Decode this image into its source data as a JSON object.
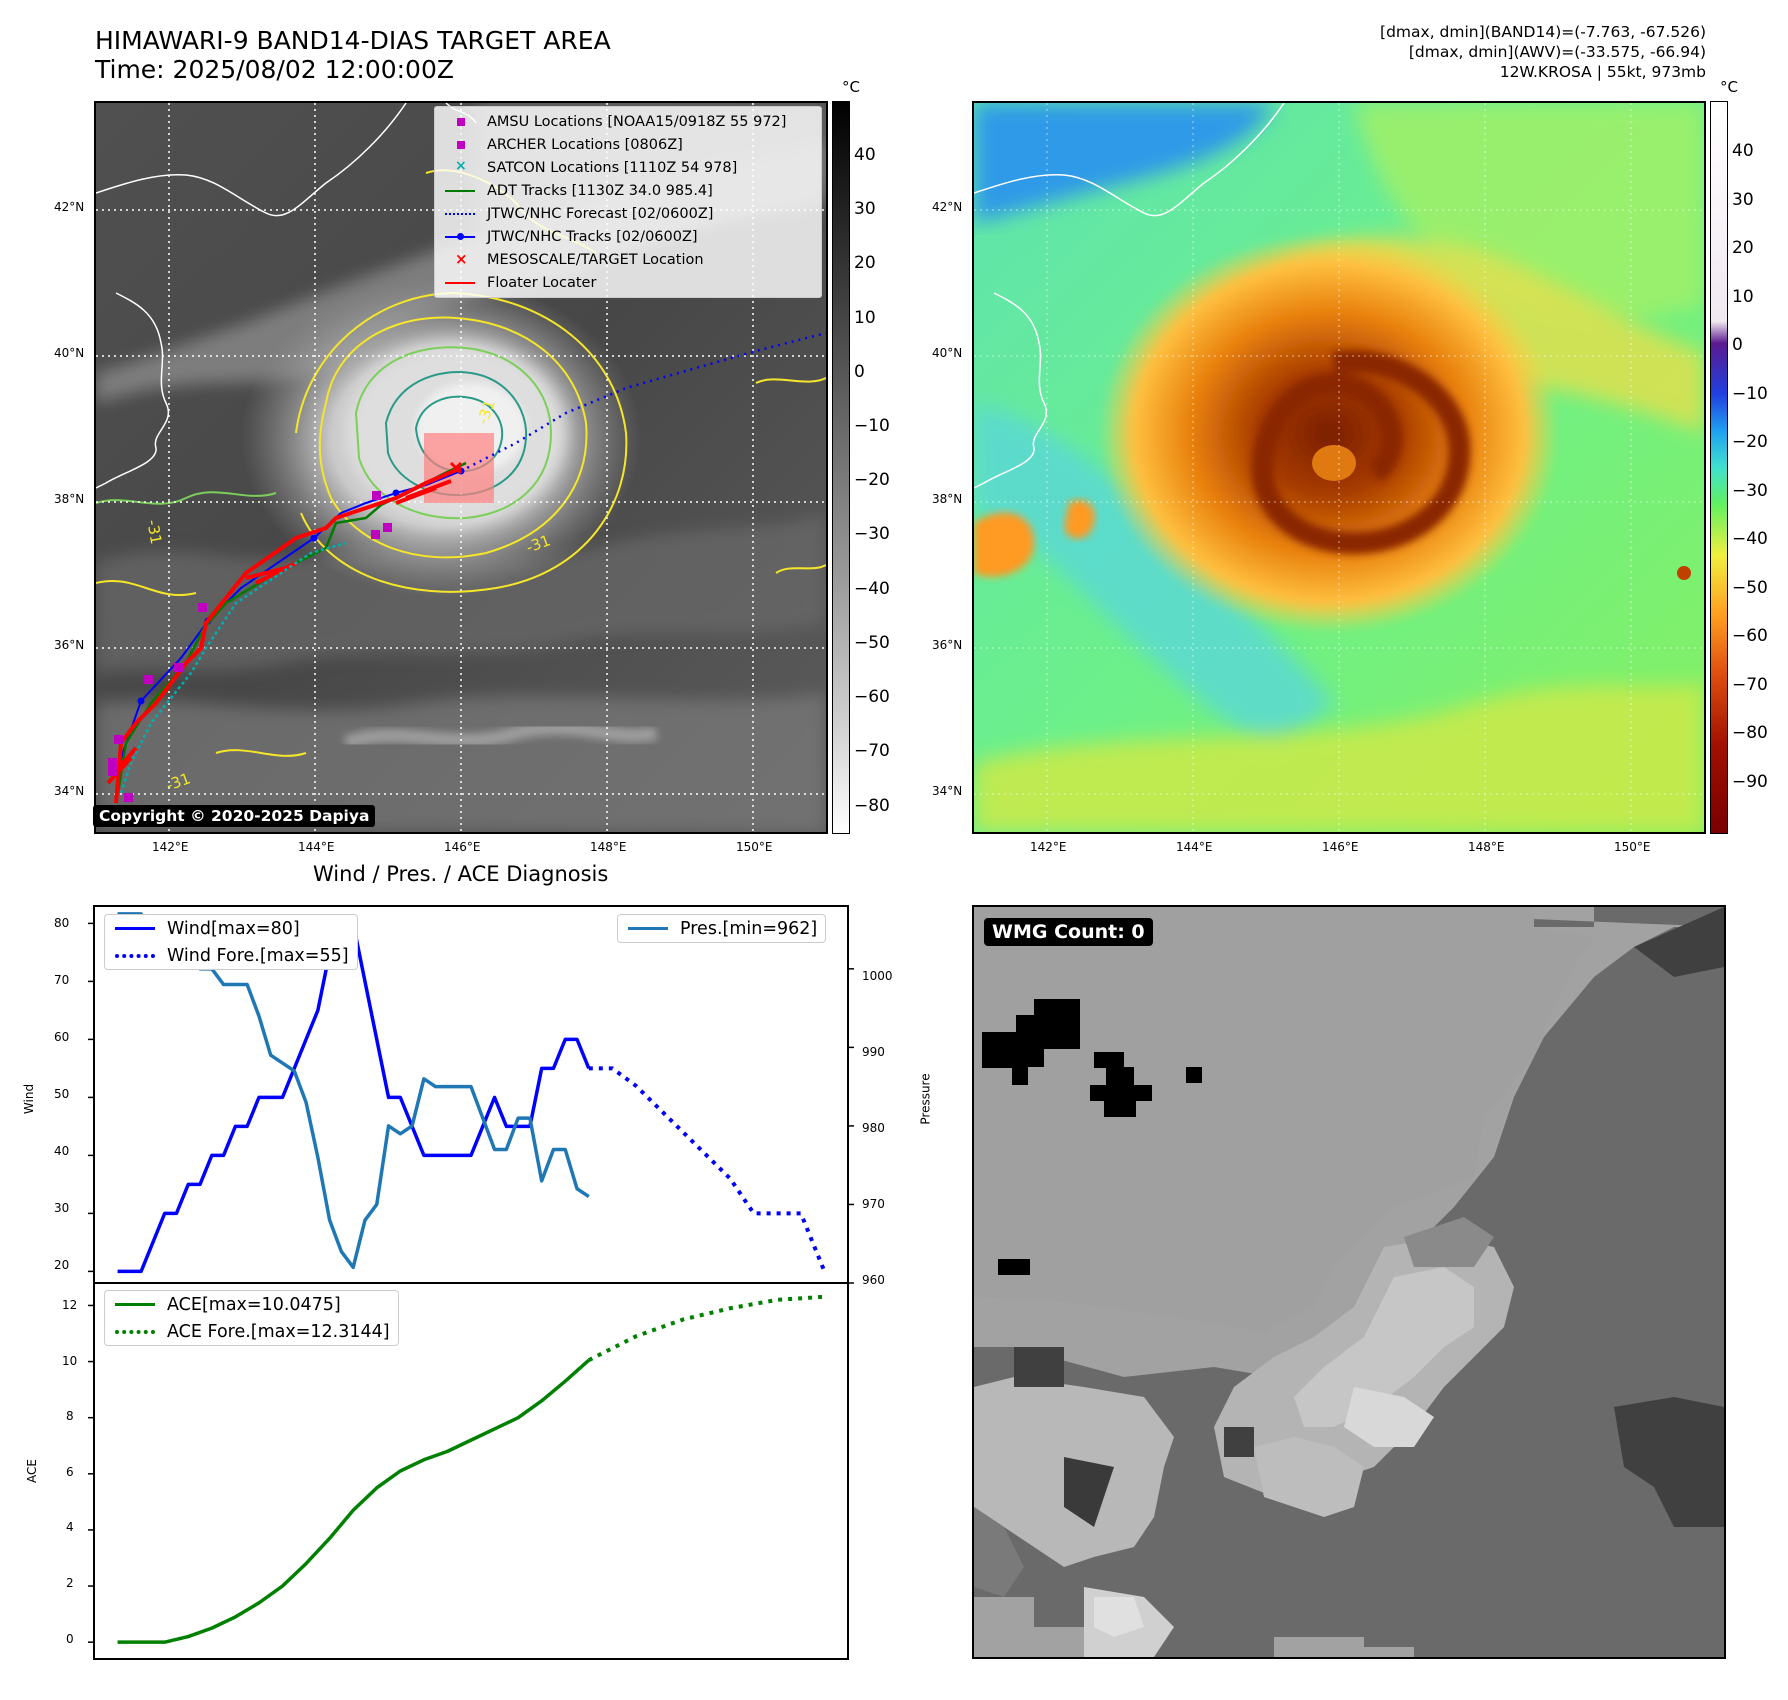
{
  "header": {
    "title_line1": "HIMAWARI-9 BAND14-DIAS TARGET AREA",
    "title_line2": "Time: 2025/08/02 12:00:00Z",
    "info_line1": "[dmax, dmin](BAND14)=(-7.763, -67.526)",
    "info_line2": "[dmax, dmin](AWV)=(-33.575, -66.94)",
    "info_line3": "12W.KROSA | 55kt, 973mb"
  },
  "map_axes": {
    "lat_labels": [
      "42°N",
      "40°N",
      "38°N",
      "36°N",
      "34°N"
    ],
    "lon_labels": [
      "142°E",
      "144°E",
      "146°E",
      "148°E",
      "150°E"
    ]
  },
  "colorbar_gray": {
    "unit": "°C",
    "ticks": [
      "40",
      "30",
      "20",
      "10",
      "0",
      "−10",
      "−20",
      "−30",
      "−40",
      "−50",
      "−60",
      "−70",
      "−80"
    ]
  },
  "colorbar_color": {
    "unit": "°C",
    "ticks": [
      "40",
      "30",
      "20",
      "10",
      "0",
      "−10",
      "−20",
      "−30",
      "−40",
      "−50",
      "−60",
      "−70",
      "−80",
      "−90"
    ]
  },
  "legend_map": {
    "items": [
      {
        "label": "AMSU Locations [NOAA15/0918Z 55 972]",
        "symbol": "square",
        "color": "#c000c0"
      },
      {
        "label": "ARCHER Locations [0806Z]",
        "symbol": "square",
        "color": "#c000c0"
      },
      {
        "label": "SATCON Locations [1110Z 54 978]",
        "symbol": "x",
        "color": "#00b0b0"
      },
      {
        "label": "ADT Tracks [1130Z 34.0 985.4]",
        "symbol": "line",
        "color": "#007a00"
      },
      {
        "label": "JTWC/NHC Forecast [02/0600Z]",
        "symbol": "dotted",
        "color": "#0000ff"
      },
      {
        "label": "JTWC/NHC Tracks [02/0600Z]",
        "symbol": "line-dot",
        "color": "#0000ff"
      },
      {
        "label": "MESOSCALE/TARGET Location",
        "symbol": "x",
        "color": "#ff0000"
      },
      {
        "label": "Floater Locater",
        "symbol": "line",
        "color": "#ff0000"
      }
    ]
  },
  "contour_labels": [
    "-31",
    "-31",
    "-31",
    "-31"
  ],
  "copyright": "Copyright © 2020-2025 Dapiya",
  "diag": {
    "title": "Wind / Pres. / ACE Diagnosis",
    "wind_ylabel": "Wind",
    "pres_ylabel": "Pressure",
    "ace_ylabel": "ACE",
    "wind_ticks": [
      "80",
      "70",
      "60",
      "50",
      "40",
      "30",
      "20"
    ],
    "pres_ticks": [
      "1000",
      "990",
      "980",
      "970",
      "960"
    ],
    "ace_ticks": [
      "12",
      "10",
      "8",
      "6",
      "4",
      "2",
      "0"
    ],
    "legend_wind": [
      "Wind[max=80]",
      "Wind Fore.[max=55]"
    ],
    "legend_pres": "Pres.[min=962]",
    "legend_ace": [
      "ACE[max=10.0475]",
      "ACE Fore.[max=12.3144]"
    ]
  },
  "wmg": {
    "label": "WMG Count: 0"
  },
  "chart_data": [
    {
      "type": "line",
      "title": "Wind / Pres. / ACE Diagnosis",
      "ylabel": "Wind",
      "ylim": [
        18,
        83
      ],
      "series": [
        {
          "name": "Wind[max=80]",
          "color": "#0000ff",
          "x": [
            0,
            3,
            6,
            9,
            12,
            15,
            18,
            21,
            24,
            27,
            30,
            33,
            36,
            39,
            42,
            45,
            48,
            51,
            54,
            57,
            60,
            63,
            66,
            69,
            72,
            75,
            78,
            81,
            84,
            87,
            90,
            93,
            96,
            99,
            102,
            105,
            108,
            111,
            114,
            117,
            120
          ],
          "y": [
            20,
            20,
            20,
            25,
            30,
            30,
            35,
            35,
            40,
            40,
            45,
            45,
            50,
            50,
            50,
            55,
            60,
            65,
            75,
            80,
            80,
            70,
            60,
            50,
            50,
            45,
            40,
            40,
            40,
            40,
            40,
            45,
            50,
            45,
            45,
            45,
            55,
            55,
            60,
            60,
            55
          ]
        },
        {
          "name": "Wind Fore.[max=55]",
          "color": "#0000ff",
          "style": "dotted",
          "x": [
            120,
            126,
            132,
            138,
            144,
            150,
            156,
            162,
            168,
            174,
            180
          ],
          "y": [
            55,
            55,
            52,
            48,
            44,
            40,
            36,
            30,
            30,
            30,
            20
          ]
        }
      ],
      "secondary_axis": {
        "ylabel": "Pressure",
        "ylim": [
          960,
          1008
        ],
        "series": [
          {
            "name": "Pres.[min=962]",
            "color": "#1f77b4",
            "x": [
              0,
              3,
              6,
              9,
              12,
              15,
              18,
              21,
              24,
              27,
              30,
              33,
              36,
              39,
              42,
              45,
              48,
              51,
              54,
              57,
              60,
              63,
              66,
              69,
              72,
              75,
              78,
              81,
              84,
              87,
              90,
              93,
              96,
              99,
              102,
              105,
              108,
              111,
              114,
              117,
              120
            ],
            "y": [
              1007,
              1007,
              1007,
              1004,
              1004,
              1003,
              1003,
              1000,
              1000,
              998,
              998,
              998,
              994,
              989,
              988,
              987,
              983,
              976,
              968,
              964,
              962,
              968,
              970,
              980,
              979,
              980,
              986,
              985,
              985,
              985,
              985,
              981,
              977,
              977,
              981,
              981,
              973,
              977,
              977,
              972,
              971
            ]
          }
        ]
      }
    },
    {
      "type": "line",
      "ylabel": "ACE",
      "ylim": [
        -0.6,
        12.8
      ],
      "series": [
        {
          "name": "ACE[max=10.0475]",
          "color": "#008000",
          "x": [
            0,
            6,
            12,
            18,
            24,
            30,
            36,
            42,
            48,
            54,
            60,
            66,
            72,
            78,
            84,
            90,
            96,
            102,
            108,
            114,
            120
          ],
          "y": [
            0,
            0,
            0,
            0.2,
            0.5,
            0.9,
            1.4,
            2.0,
            2.8,
            3.7,
            4.7,
            5.5,
            6.1,
            6.5,
            6.8,
            7.2,
            7.6,
            8.0,
            8.6,
            9.3,
            10.05
          ]
        },
        {
          "name": "ACE Fore.[max=12.3144]",
          "color": "#008000",
          "style": "dotted",
          "x": [
            120,
            132,
            144,
            156,
            168,
            180
          ],
          "y": [
            10.05,
            10.9,
            11.5,
            11.9,
            12.2,
            12.31
          ]
        }
      ]
    }
  ]
}
